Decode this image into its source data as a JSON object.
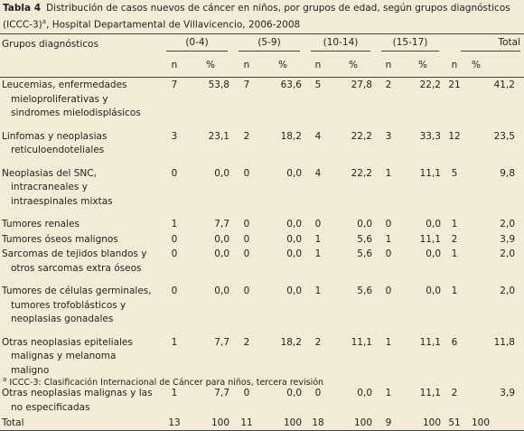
{
  "caption": {
    "label": "Tabla 4",
    "text_line1": "Distribución de casos nuevos de cáncer en niños, por grupos de edad, según grupos diagnósticos",
    "text_line2_pre": "(ICCC-3)",
    "text_line2_sup": "a",
    "text_line2_post": ", Hospital Departamental de Villavicencio, 2006-2008"
  },
  "table": {
    "col_group": "Grupos diagnósticos",
    "age_groups": [
      "(0-4)",
      "(5-9)",
      "(10-14)",
      "(15-17)"
    ],
    "total_label": "Total",
    "n_label": "n",
    "pct_label": "%",
    "rows": [
      {
        "lines": [
          "Leucemias, enfermedades",
          "mieloproliferativas y",
          "sindromes mielodisplásicos"
        ],
        "v": [
          "7",
          "53,8",
          "7",
          "63,6",
          "5",
          "27,8",
          "2",
          "22,2",
          "21",
          "41,2"
        ]
      },
      {
        "lines": [
          "Linfomas y neoplasias",
          "reticuloendoteliales"
        ],
        "v": [
          "3",
          "23,1",
          "2",
          "18,2",
          "4",
          "22,2",
          "3",
          "33,3",
          "12",
          "23,5"
        ]
      },
      {
        "lines": [
          "Neoplasias del SNC,",
          "intracraneales y",
          "intraespinales mixtas"
        ],
        "v": [
          "0",
          "0,0",
          "0",
          "0,0",
          "4",
          "22,2",
          "1",
          "11,1",
          "5",
          "9,8"
        ]
      },
      {
        "lines": [
          "Tumores renales"
        ],
        "v": [
          "1",
          "7,7",
          "0",
          "0,0",
          "0",
          "0,0",
          "0",
          "0,0",
          "1",
          "2,0"
        ]
      },
      {
        "lines": [
          "Tumores óseos malignos"
        ],
        "v": [
          "0",
          "0,0",
          "0",
          "0,0",
          "1",
          "5,6",
          "1",
          "11,1",
          "2",
          "3,9"
        ]
      },
      {
        "lines": [
          "Sarcomas de tejidos blandos y",
          "otros sarcomas extra óseos"
        ],
        "v": [
          "0",
          "0,0",
          "0",
          "0,0",
          "1",
          "5,6",
          "0",
          "0,0",
          "1",
          "2,0"
        ]
      },
      {
        "lines": [
          "Tumores de células germinales,",
          "tumores trofoblásticos y",
          "neoplasias gonadales"
        ],
        "v": [
          "0",
          "0,0",
          "0",
          "0,0",
          "1",
          "5,6",
          "0",
          "0,0",
          "1",
          "2,0"
        ]
      },
      {
        "lines": [
          "Otras neoplasias epiteliales",
          "malignas y melanoma",
          "maligno"
        ],
        "v": [
          "1",
          "7,7",
          "2",
          "18,2",
          "2",
          "11,1",
          "1",
          "11,1",
          "6",
          "11,8"
        ]
      },
      {
        "lines": [
          "Otras neoplasias malignas y las",
          "no especificadas"
        ],
        "v": [
          "1",
          "7,7",
          "0",
          "0,0",
          "0",
          "0,0",
          "1",
          "11,1",
          "2",
          "3,9"
        ]
      }
    ],
    "total_row": {
      "label": "Total",
      "v": [
        "13",
        "100",
        "11",
        "100",
        "18",
        "100",
        "9",
        "100",
        "51",
        "100"
      ]
    }
  },
  "footnote": {
    "sup": "a",
    "text": " ICCC-3: Clasificación Internacional de Cáncer para niños, tercera revisión"
  }
}
